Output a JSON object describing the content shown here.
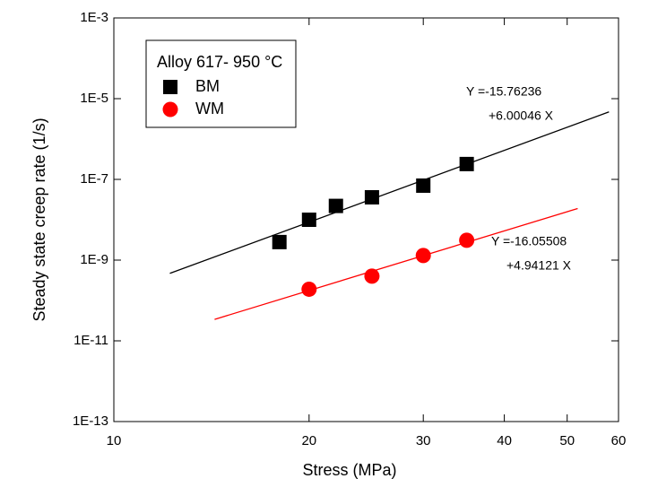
{
  "chart_data": {
    "type": "scatter",
    "xlabel": "Stress (MPa)",
    "ylabel": "Steady state creep rate (1/s)",
    "xscale": "log",
    "yscale": "log",
    "xlim": [
      10,
      60
    ],
    "ylim": [
      1e-13,
      0.001
    ],
    "xticks": [
      10,
      20,
      30,
      40,
      50,
      60
    ],
    "yticks": [
      {
        "value": 1e-13,
        "label": "1E-13"
      },
      {
        "value": 1e-11,
        "label": "1E-11"
      },
      {
        "value": 1e-09,
        "label": "1E-9"
      },
      {
        "value": 1e-07,
        "label": "1E-7"
      },
      {
        "value": 1e-05,
        "label": "1E-5"
      },
      {
        "value": 0.001,
        "label": "1E-3"
      }
    ],
    "legend": {
      "title": "Alloy 617- 950 °C",
      "position": "upper left"
    },
    "series": [
      {
        "name": "BM",
        "color": "#000000",
        "marker": "square",
        "x": [
          18,
          20,
          22,
          25,
          30,
          35
        ],
        "values": [
          2.8e-09,
          1e-08,
          2.2e-08,
          3.6e-08,
          7e-08,
          2.4e-07
        ]
      },
      {
        "name": "WM",
        "color": "#ff0000",
        "marker": "circle",
        "x": [
          20,
          25,
          30,
          35
        ],
        "values": [
          1.9e-10,
          4e-10,
          1.3e-09,
          3.1e-09
        ]
      }
    ],
    "fits": [
      {
        "color": "#000000",
        "x": [
          12.2,
          58
        ],
        "values": [
          4.7e-10,
          4.7e-06
        ],
        "label": [
          "Y =-15.76236",
          "+6.00046 X"
        ]
      },
      {
        "color": "#ff0000",
        "x": [
          14.3,
          51.9
        ],
        "values": [
          3.4e-11,
          1.9e-08
        ],
        "label": [
          "Y =-16.05508",
          "+4.94121 X"
        ]
      }
    ]
  }
}
